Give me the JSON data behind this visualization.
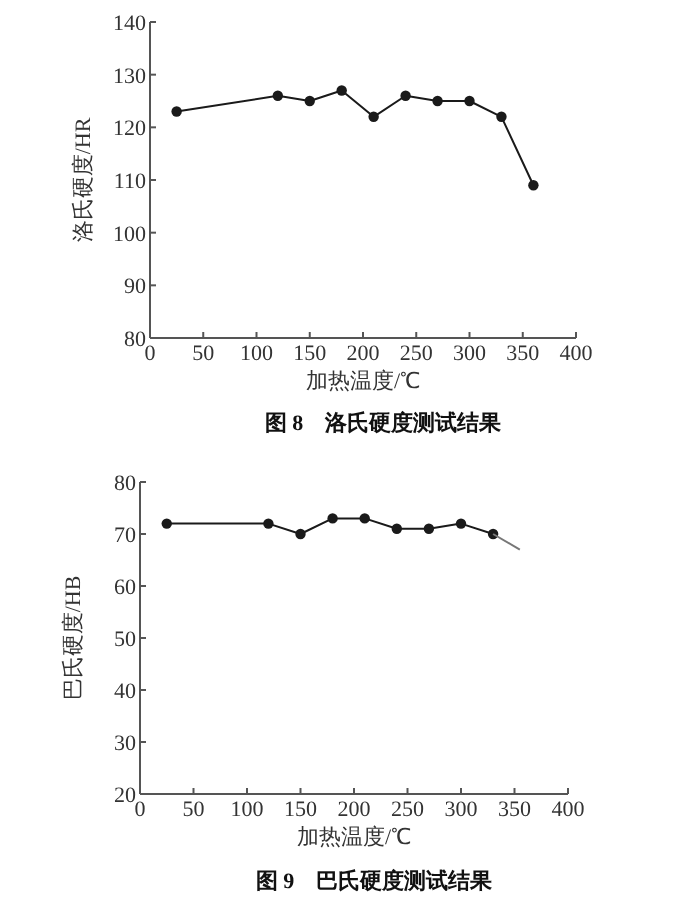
{
  "chart_data": [
    {
      "type": "line",
      "title": "图 8　洛氏硬度测试结果",
      "xlabel": "加热温度/℃",
      "ylabel": "洛氏硬度/HR",
      "xlim": [
        0,
        400
      ],
      "ylim": [
        80,
        140
      ],
      "xticks": [
        0,
        50,
        100,
        150,
        200,
        250,
        300,
        350,
        400
      ],
      "yticks": [
        80,
        90,
        100,
        110,
        120,
        130,
        140
      ],
      "grid": false,
      "marker": "circle",
      "series": [
        {
          "color": "#1a1a1a",
          "x": [
            25,
            120,
            150,
            180,
            210,
            240,
            270,
            300,
            330,
            360
          ],
          "values": [
            123,
            126,
            125,
            127,
            122,
            126,
            125,
            125,
            122,
            109
          ]
        }
      ]
    },
    {
      "type": "line",
      "title": "图 9　巴氏硬度测试结果",
      "xlabel": "加热温度/℃",
      "ylabel": "巴氏硬度/HB",
      "xlim": [
        0,
        400
      ],
      "ylim": [
        20,
        80
      ],
      "xticks": [
        0,
        50,
        100,
        150,
        200,
        250,
        300,
        350,
        400
      ],
      "yticks": [
        20,
        30,
        40,
        50,
        60,
        70,
        80
      ],
      "grid": false,
      "marker": "circle",
      "series": [
        {
          "color": "#1a1a1a",
          "x": [
            25,
            120,
            150,
            180,
            210,
            240,
            270,
            300,
            330
          ],
          "values": [
            72,
            72,
            70,
            73,
            73,
            71,
            71,
            72,
            70
          ]
        },
        {
          "color": "#777777",
          "marker": "none",
          "x": [
            330,
            355
          ],
          "values": [
            70,
            67
          ]
        }
      ]
    }
  ]
}
